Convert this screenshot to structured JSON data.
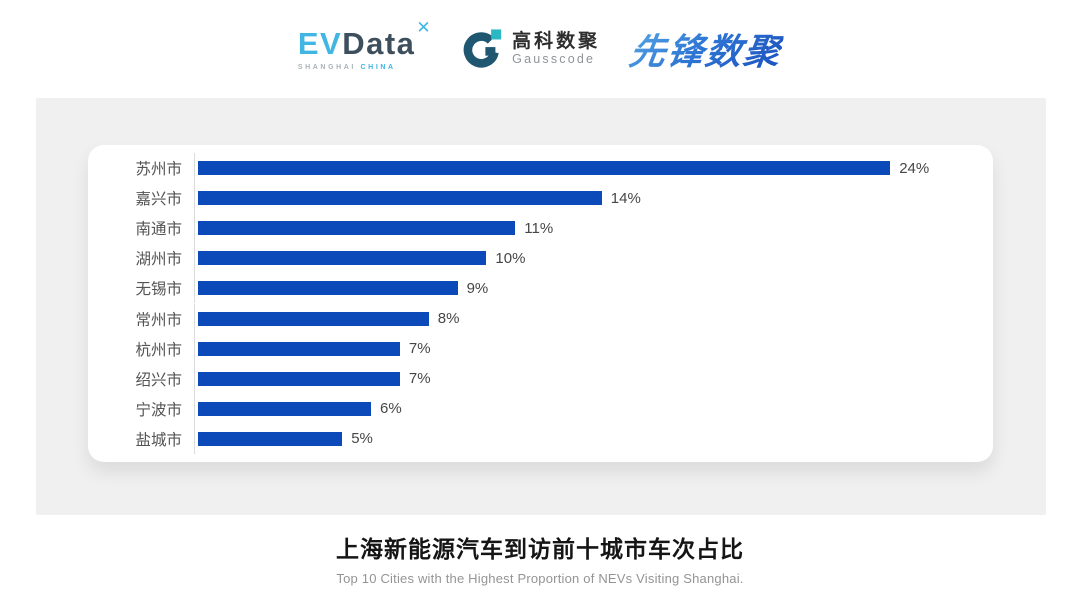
{
  "header": {
    "evdata": {
      "ev": "EV",
      "data": "Data",
      "mark_icon": "x-spark",
      "sub_left": "SHANGHAI",
      "sub_right": "CHINA"
    },
    "gausscode": {
      "cn": "高科数聚",
      "en": "Gausscode"
    },
    "xianfeng": {
      "text": "先锋数聚"
    }
  },
  "chart_data": {
    "type": "bar",
    "orientation": "horizontal",
    "categories": [
      "苏州市",
      "嘉兴市",
      "南通市",
      "湖州市",
      "无锡市",
      "常州市",
      "杭州市",
      "绍兴市",
      "宁波市",
      "盐城市"
    ],
    "values": [
      24,
      14,
      11,
      10,
      9,
      8,
      7,
      7,
      6,
      5
    ],
    "value_labels": [
      "24%",
      "14%",
      "11%",
      "10%",
      "9%",
      "8%",
      "7%",
      "7%",
      "6%",
      "5%"
    ],
    "unit": "%",
    "bar_color": "#0b4ab8",
    "grid": false,
    "legend": false,
    "axis_line": true
  },
  "footer": {
    "title": "上海新能源汽车到访前十城市车次占比",
    "subtitle": "Top 10 Cities with the Highest Proportion of  NEVs Visiting Shanghai."
  },
  "colors": {
    "bar-blue": "#0b4ab8",
    "panel-gray": "#f0f0f0",
    "evdata-cyan": "#41b6e3",
    "evdata-dark": "#3d4f5c",
    "gauss-ring": "#1f5670",
    "gauss-teal": "#2bb8c2",
    "xf-blue": "#2f77d4"
  }
}
